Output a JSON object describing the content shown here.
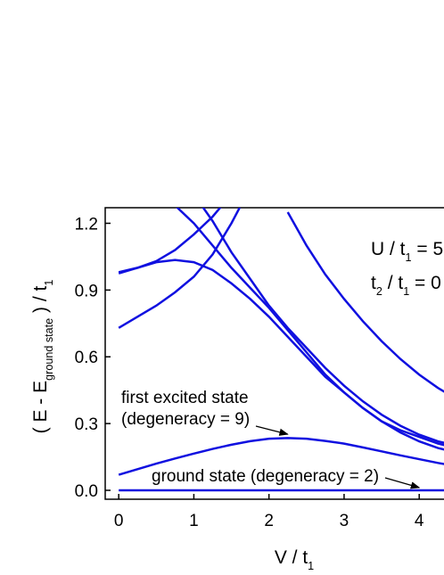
{
  "chart_data": {
    "type": "line",
    "x_label": [
      {
        "text": "V / t"
      },
      {
        "text": "1",
        "sub": true
      }
    ],
    "y_label": [
      {
        "text": "( E - E"
      },
      {
        "text": "ground state",
        "sub": true
      },
      {
        "text": " ) / t"
      },
      {
        "text": "1",
        "sub": true
      }
    ],
    "params": [
      [
        {
          "text": "U / t"
        },
        {
          "text": "1",
          "sub": true
        },
        {
          "text": " = 5"
        }
      ],
      [
        {
          "text": "t"
        },
        {
          "text": "2",
          "sub": true
        },
        {
          "text": " / t"
        },
        {
          "text": "1",
          "sub": true
        },
        {
          "text": " = 0"
        }
      ]
    ],
    "annotations": [
      {
        "lines": [
          "first excited state",
          "(degeneracy = 9)"
        ],
        "arrow_to": [
          2.25,
          0.24
        ]
      },
      {
        "lines": [
          "ground state (degeneracy = 2)"
        ],
        "arrow_to": [
          4.0,
          0.0
        ]
      }
    ],
    "x": [
      0,
      0.25,
      0.5,
      0.75,
      1,
      1.25,
      1.5,
      1.75,
      2,
      2.25,
      2.5,
      2.75,
      3,
      3.25,
      3.5,
      3.75,
      4,
      4.25,
      4.5
    ],
    "series": [
      {
        "color": "#1010e0",
        "values": [
          0,
          0,
          0,
          0,
          0,
          0,
          0,
          0,
          0,
          0,
          0,
          0,
          0,
          0,
          0,
          0,
          0,
          0,
          0
        ]
      },
      {
        "color": "#1010e0",
        "values": [
          0.07,
          0.095,
          0.12,
          0.143,
          0.165,
          0.186,
          0.205,
          0.221,
          0.232,
          0.235,
          0.232,
          0.222,
          0.21,
          0.193,
          0.175,
          0.157,
          0.14,
          0.123,
          0.108
        ]
      },
      {
        "color": "#1010e0",
        "values": [
          0.73,
          0.78,
          0.83,
          0.89,
          0.96,
          1.06,
          1.2,
          1.36,
          null,
          null,
          null,
          null,
          null,
          null,
          null,
          null,
          null,
          null,
          null
        ]
      },
      {
        "color": "#1010e0",
        "values": [
          0.98,
          1.0,
          1.03,
          1.08,
          1.15,
          1.23,
          1.33,
          null,
          null,
          null,
          null,
          null,
          null,
          null,
          null,
          null,
          null,
          null,
          null
        ]
      },
      {
        "color": "#1010e0",
        "values": [
          0.975,
          1.0,
          1.025,
          1.035,
          1.025,
          0.99,
          0.93,
          0.86,
          0.78,
          0.69,
          0.6,
          0.51,
          0.44,
          0.37,
          0.31,
          0.26,
          0.22,
          0.19,
          0.17
        ]
      },
      {
        "color": "#1010e0",
        "values": [
          null,
          null,
          null,
          1.28,
          1.2,
          1.1,
          1.0,
          0.91,
          0.82,
          0.72,
          0.62,
          0.52,
          0.44,
          0.37,
          0.31,
          0.27,
          0.24,
          0.21,
          0.19
        ]
      },
      {
        "color": "#1010e0",
        "values": [
          null,
          null,
          null,
          null,
          1.33,
          1.21,
          1.07,
          0.95,
          0.83,
          0.73,
          0.64,
          0.55,
          0.47,
          0.4,
          0.34,
          0.29,
          0.25,
          0.22,
          0.2
        ]
      },
      {
        "color": "#1010e0",
        "values": [
          null,
          null,
          null,
          null,
          null,
          null,
          null,
          null,
          null,
          1.25,
          1.1,
          0.97,
          0.86,
          0.76,
          0.67,
          0.59,
          0.52,
          0.46,
          0.41
        ]
      }
    ],
    "xlim": [
      -0.18,
      4.33
    ],
    "ylim": [
      -0.04,
      1.27
    ],
    "xticks": [
      0,
      1,
      2,
      3,
      4
    ],
    "yticks": [
      {
        "value": 0,
        "label": "0.0"
      },
      0.3,
      0.6,
      0.9,
      1.2
    ]
  }
}
